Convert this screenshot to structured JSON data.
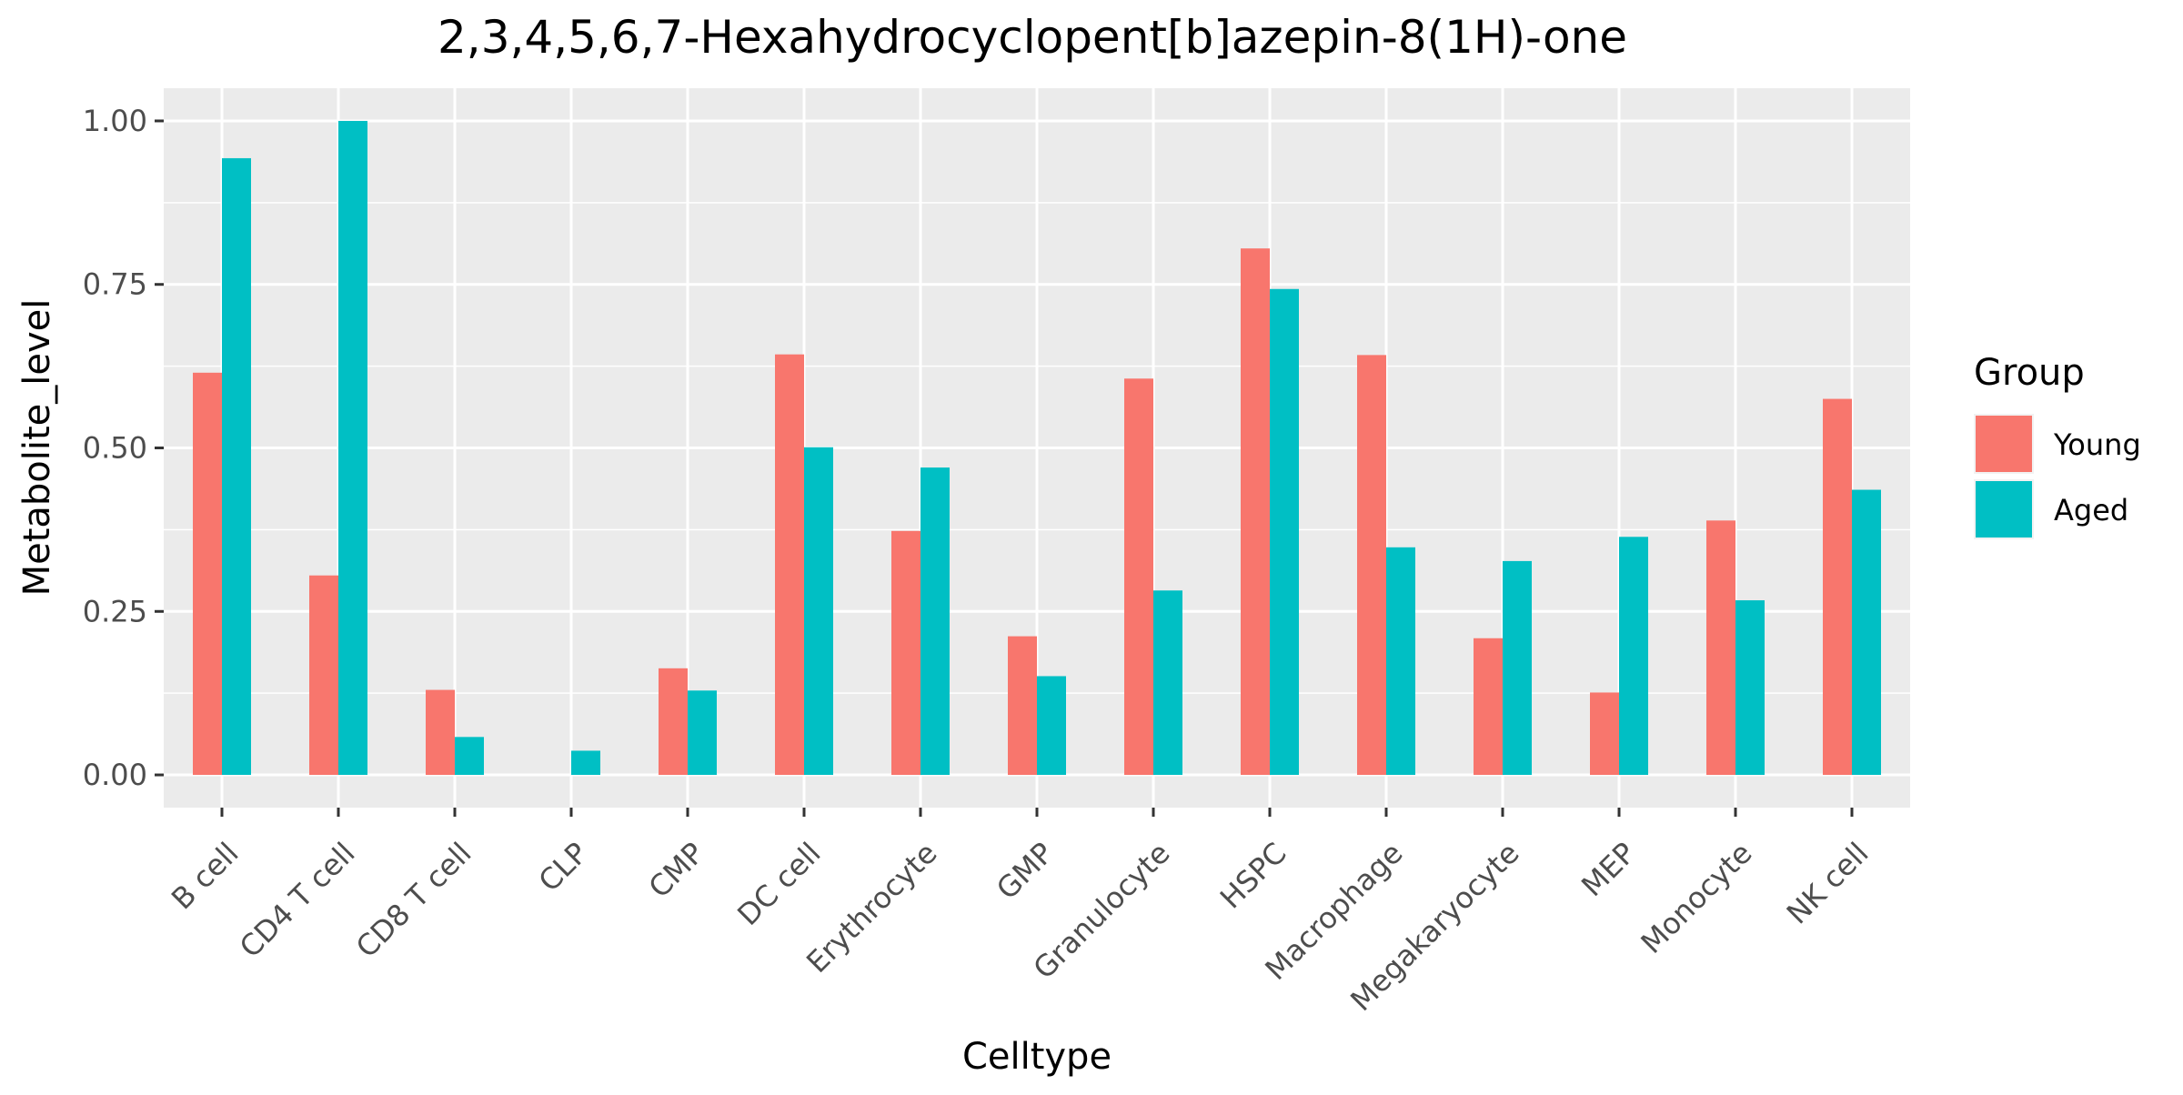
{
  "chart_data": {
    "type": "bar",
    "title": "2,3,4,5,6,7-Hexahydrocyclopent[b]azepin-8(1H)-one",
    "xlabel": "Celltype",
    "ylabel": "Metabolite_level",
    "ylim": [
      -0.05,
      1.05
    ],
    "yticks": [
      0,
      0.25,
      0.5,
      0.75,
      1.0
    ],
    "ytick_labels": [
      "0.00",
      "0.25",
      "0.50",
      "0.75",
      "1.00"
    ],
    "grid": true,
    "legend": {
      "title": "Group",
      "position": "right"
    },
    "categories": [
      "B cell",
      "CD4 T cell",
      "CD8 T cell",
      "CLP",
      "CMP",
      "DC cell",
      "Erythrocyte",
      "GMP",
      "Granulocyte",
      "HSPC",
      "Macrophage",
      "Megakaryocyte",
      "MEP",
      "Monocyte",
      "NK cell"
    ],
    "series": [
      {
        "name": "Young",
        "color": "#F8766D",
        "values": [
          0.615,
          0.305,
          0.13,
          0.0,
          0.163,
          0.643,
          0.373,
          0.212,
          0.606,
          0.805,
          0.642,
          0.209,
          0.126,
          0.389,
          0.575
        ]
      },
      {
        "name": "Aged",
        "color": "#00BFC4",
        "values": [
          0.943,
          1.0,
          0.058,
          0.037,
          0.129,
          0.501,
          0.47,
          0.151,
          0.282,
          0.743,
          0.348,
          0.327,
          0.364,
          0.267,
          0.436
        ]
      }
    ]
  }
}
